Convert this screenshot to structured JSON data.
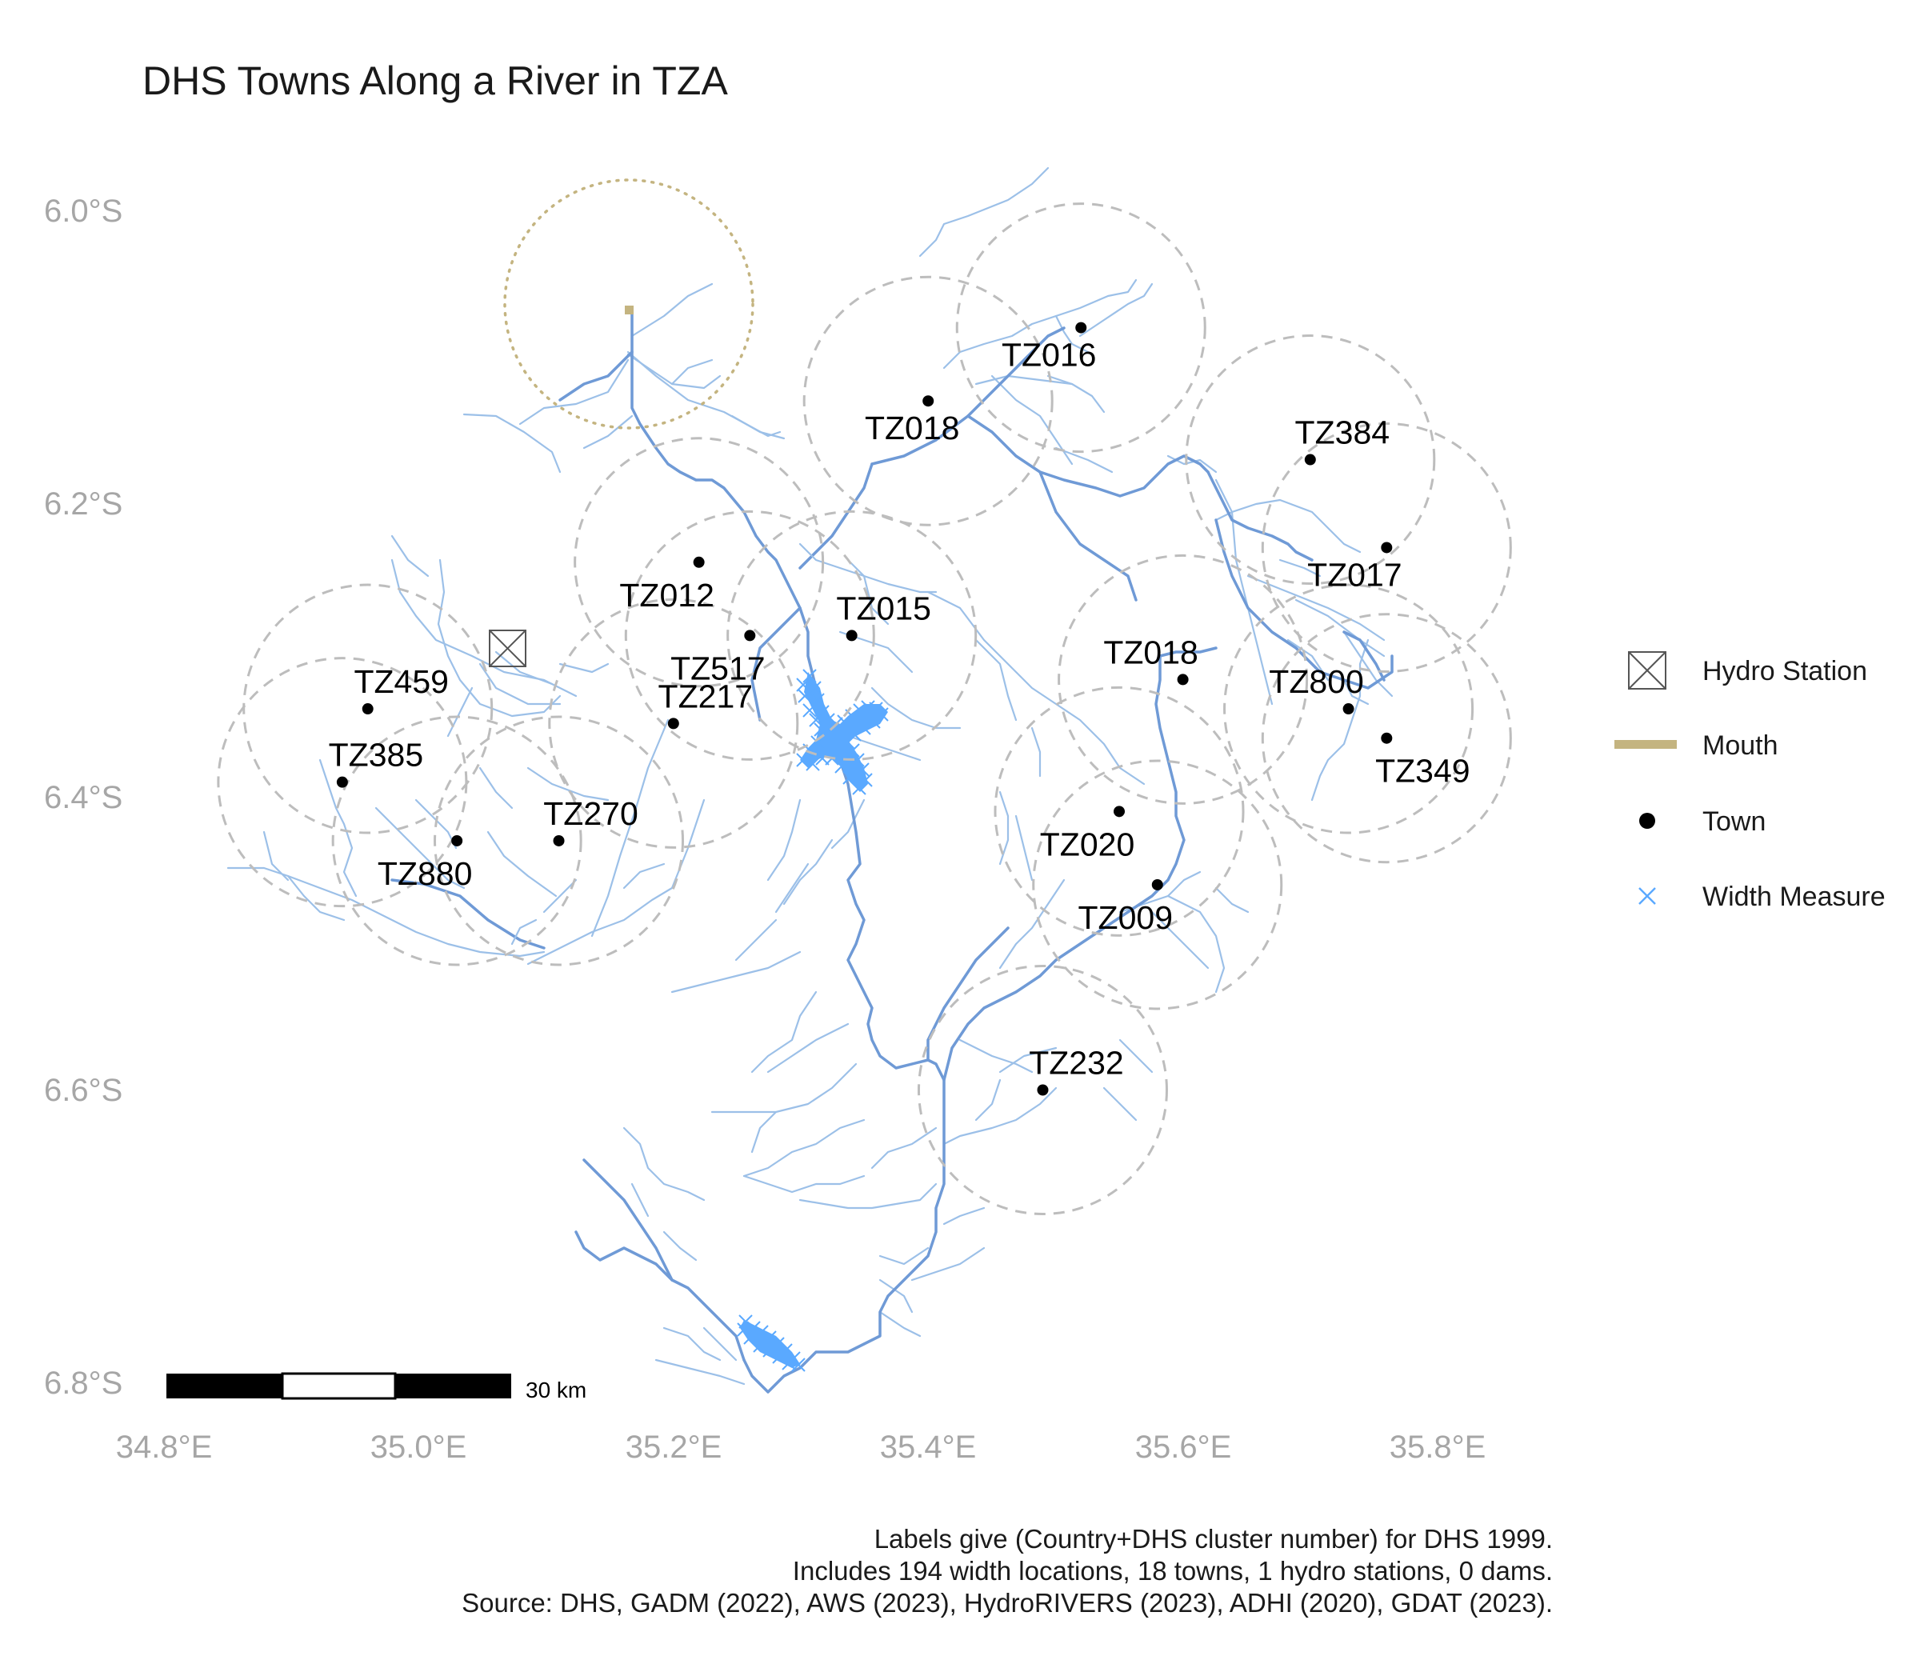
{
  "title": "DHS Towns Along a River in TZA",
  "colors": {
    "river_major": "#6f9ad6",
    "river_minor": "#9cc0e8",
    "width_measure": "#5aa9ff",
    "buffer": "#bdbdbd",
    "mouth": "#c4b480",
    "town": "#000000",
    "axis_text": "#a6a6a6"
  },
  "axes": {
    "lat_ticks": [
      "6.0°S",
      "6.2°S",
      "6.4°S",
      "6.6°S",
      "6.8°S"
    ],
    "lon_ticks": [
      "34.8°E",
      "35.0°E",
      "35.2°E",
      "35.4°E",
      "35.6°E",
      "35.8°E"
    ]
  },
  "towns": [
    {
      "id": "TZ016",
      "lon": 35.52,
      "lat": 6.08
    },
    {
      "id": "TZ018",
      "lon": 35.4,
      "lat": 6.13
    },
    {
      "id": "TZ384",
      "lon": 35.7,
      "lat": 6.17
    },
    {
      "id": "TZ017",
      "lon": 35.76,
      "lat": 6.23
    },
    {
      "id": "TZ012",
      "lon": 35.22,
      "lat": 6.24
    },
    {
      "id": "TZ015",
      "lon": 35.34,
      "lat": 6.29
    },
    {
      "id": "TZ517",
      "lon": 35.26,
      "lat": 6.29
    },
    {
      "id": "TZ018",
      "lon": 35.6,
      "lat": 6.32
    },
    {
      "id": "TZ459",
      "lon": 34.96,
      "lat": 6.34
    },
    {
      "id": "TZ800",
      "lon": 35.73,
      "lat": 6.34
    },
    {
      "id": "TZ217",
      "lon": 35.2,
      "lat": 6.35
    },
    {
      "id": "TZ349",
      "lon": 35.76,
      "lat": 6.36
    },
    {
      "id": "TZ385",
      "lon": 34.94,
      "lat": 6.39
    },
    {
      "id": "TZ020",
      "lon": 35.55,
      "lat": 6.41
    },
    {
      "id": "TZ270",
      "lon": 35.11,
      "lat": 6.43
    },
    {
      "id": "TZ880",
      "lon": 35.03,
      "lat": 6.43
    },
    {
      "id": "TZ009",
      "lon": 35.58,
      "lat": 6.46
    },
    {
      "id": "TZ232",
      "lon": 35.49,
      "lat": 6.6
    }
  ],
  "hydro_station": {
    "lon": 35.08,
    "lat": 6.3
  },
  "mouth": {
    "lon": 35.17,
    "lat": 6.07
  },
  "legend": [
    {
      "label": "Hydro Station",
      "symbol": "hydro-station"
    },
    {
      "label": "Mouth",
      "symbol": "mouth"
    },
    {
      "label": "Town",
      "symbol": "town"
    },
    {
      "label": "Width Measure",
      "symbol": "width-measure"
    }
  ],
  "scale_bar": {
    "label": "30 km"
  },
  "caption": [
    "Labels give (Country+DHS cluster number) for DHS 1999.",
    "Includes 194 width locations, 18 towns, 1 hydro stations, 0 dams.",
    "Source: DHS, GADM (2022), AWS (2023), HydroRIVERS (2023), ADHI (2020), GDAT (2023)."
  ]
}
